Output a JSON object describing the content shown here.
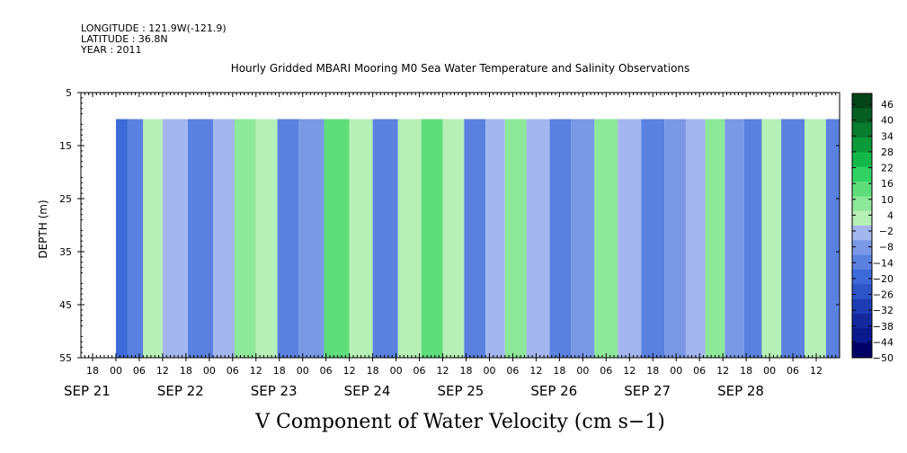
{
  "header": {
    "longitude": "LONGITUDE : 121.9W(-121.9)",
    "latitude": "LATITUDE : 36.8N",
    "year": "YEAR : 2011"
  },
  "chart_data": {
    "type": "heatmap",
    "title": "Hourly Gridded MBARI Mooring M0 Sea Water Temperature and Salinity Observations",
    "xlabel": "V Component of Water Velocity (cm s−1)",
    "ylabel": "DEPTH (m)",
    "ylim": [
      5,
      55
    ],
    "y_ticks": [
      5,
      15,
      25,
      35,
      45,
      55
    ],
    "y_inverted": true,
    "x_start": "2011-09-20T15:00",
    "x_end": "2011-09-28T18:00",
    "data_start": "2011-09-21T00:00",
    "data_depth_top": 10,
    "hour_tick_labels": [
      "18",
      "00",
      "06",
      "12",
      "18",
      "00",
      "06",
      "12",
      "18",
      "00",
      "06",
      "12",
      "18",
      "00",
      "06",
      "12",
      "18",
      "00",
      "06",
      "12",
      "18",
      "00",
      "06",
      "12",
      "18",
      "00",
      "06",
      "12",
      "18",
      "00",
      "06",
      "12"
    ],
    "date_labels": [
      "SEP 21",
      "SEP 22",
      "SEP 23",
      "SEP 24",
      "SEP 25",
      "SEP 26",
      "SEP 27",
      "SEP 28"
    ],
    "colorbar": {
      "levels": [
        -50,
        -44,
        -38,
        -32,
        -26,
        -20,
        -14,
        -8,
        -2,
        4,
        10,
        16,
        22,
        28,
        34,
        40,
        46
      ],
      "tick_labels": [
        "46",
        "40",
        "34",
        "28",
        "22",
        "16",
        "10",
        "4",
        "−2",
        "−8",
        "−14",
        "−20",
        "−26",
        "−32",
        "−38",
        "−44",
        "−50"
      ],
      "negative_colors": [
        "#000066",
        "#0a1a8c",
        "#14289e",
        "#1e3cb4",
        "#2d55c8",
        "#3d6ad8",
        "#5a80e0",
        "#7a98e6",
        "#a4b6ee"
      ],
      "positive_colors": [
        "#b6f0b6",
        "#8ee89a",
        "#5fdd7a",
        "#2fd263",
        "#12b94a",
        "#0a9a3a",
        "#087d2e",
        "#055f22",
        "#034418"
      ]
    },
    "v_bands": [
      {
        "center": "2011-09-21T01:00",
        "v": -14
      },
      {
        "center": "2011-09-21T05:00",
        "v": -8
      },
      {
        "center": "2011-09-21T09:00",
        "v": 8
      },
      {
        "center": "2011-09-21T15:00",
        "v": 3
      },
      {
        "center": "2011-09-21T22:00",
        "v": -8
      },
      {
        "center": "2011-09-22T04:00",
        "v": 4
      },
      {
        "center": "2011-09-22T09:00",
        "v": 16
      },
      {
        "center": "2011-09-22T15:00",
        "v": 6
      },
      {
        "center": "2011-09-22T20:00",
        "v": -8
      },
      {
        "center": "2011-09-23T02:00",
        "v": -4
      },
      {
        "center": "2011-09-23T09:00",
        "v": 18
      },
      {
        "center": "2011-09-23T15:00",
        "v": 8
      },
      {
        "center": "2011-09-23T21:00",
        "v": -9
      },
      {
        "center": "2011-09-24T04:00",
        "v": 5
      },
      {
        "center": "2011-09-24T09:00",
        "v": 20
      },
      {
        "center": "2011-09-24T15:00",
        "v": 6
      },
      {
        "center": "2011-09-24T20:00",
        "v": -8
      },
      {
        "center": "2011-09-25T02:00",
        "v": 4
      },
      {
        "center": "2011-09-25T06:00",
        "v": 14
      },
      {
        "center": "2011-09-25T13:00",
        "v": 4
      },
      {
        "center": "2011-09-25T18:00",
        "v": -10
      },
      {
        "center": "2011-09-26T00:00",
        "v": -6
      },
      {
        "center": "2011-09-26T06:00",
        "v": 14
      },
      {
        "center": "2011-09-26T12:00",
        "v": 2
      },
      {
        "center": "2011-09-26T18:00",
        "v": -12
      },
      {
        "center": "2011-09-27T00:00",
        "v": -6
      },
      {
        "center": "2011-09-27T05:00",
        "v": 2
      },
      {
        "center": "2011-09-27T10:00",
        "v": 12
      },
      {
        "center": "2011-09-27T15:00",
        "v": -6
      },
      {
        "center": "2011-09-27T20:00",
        "v": -10
      },
      {
        "center": "2011-09-28T00:00",
        "v": 6
      },
      {
        "center": "2011-09-28T06:00",
        "v": -10
      },
      {
        "center": "2011-09-28T12:00",
        "v": 6
      },
      {
        "center": "2011-09-28T17:00",
        "v": -8
      }
    ]
  }
}
